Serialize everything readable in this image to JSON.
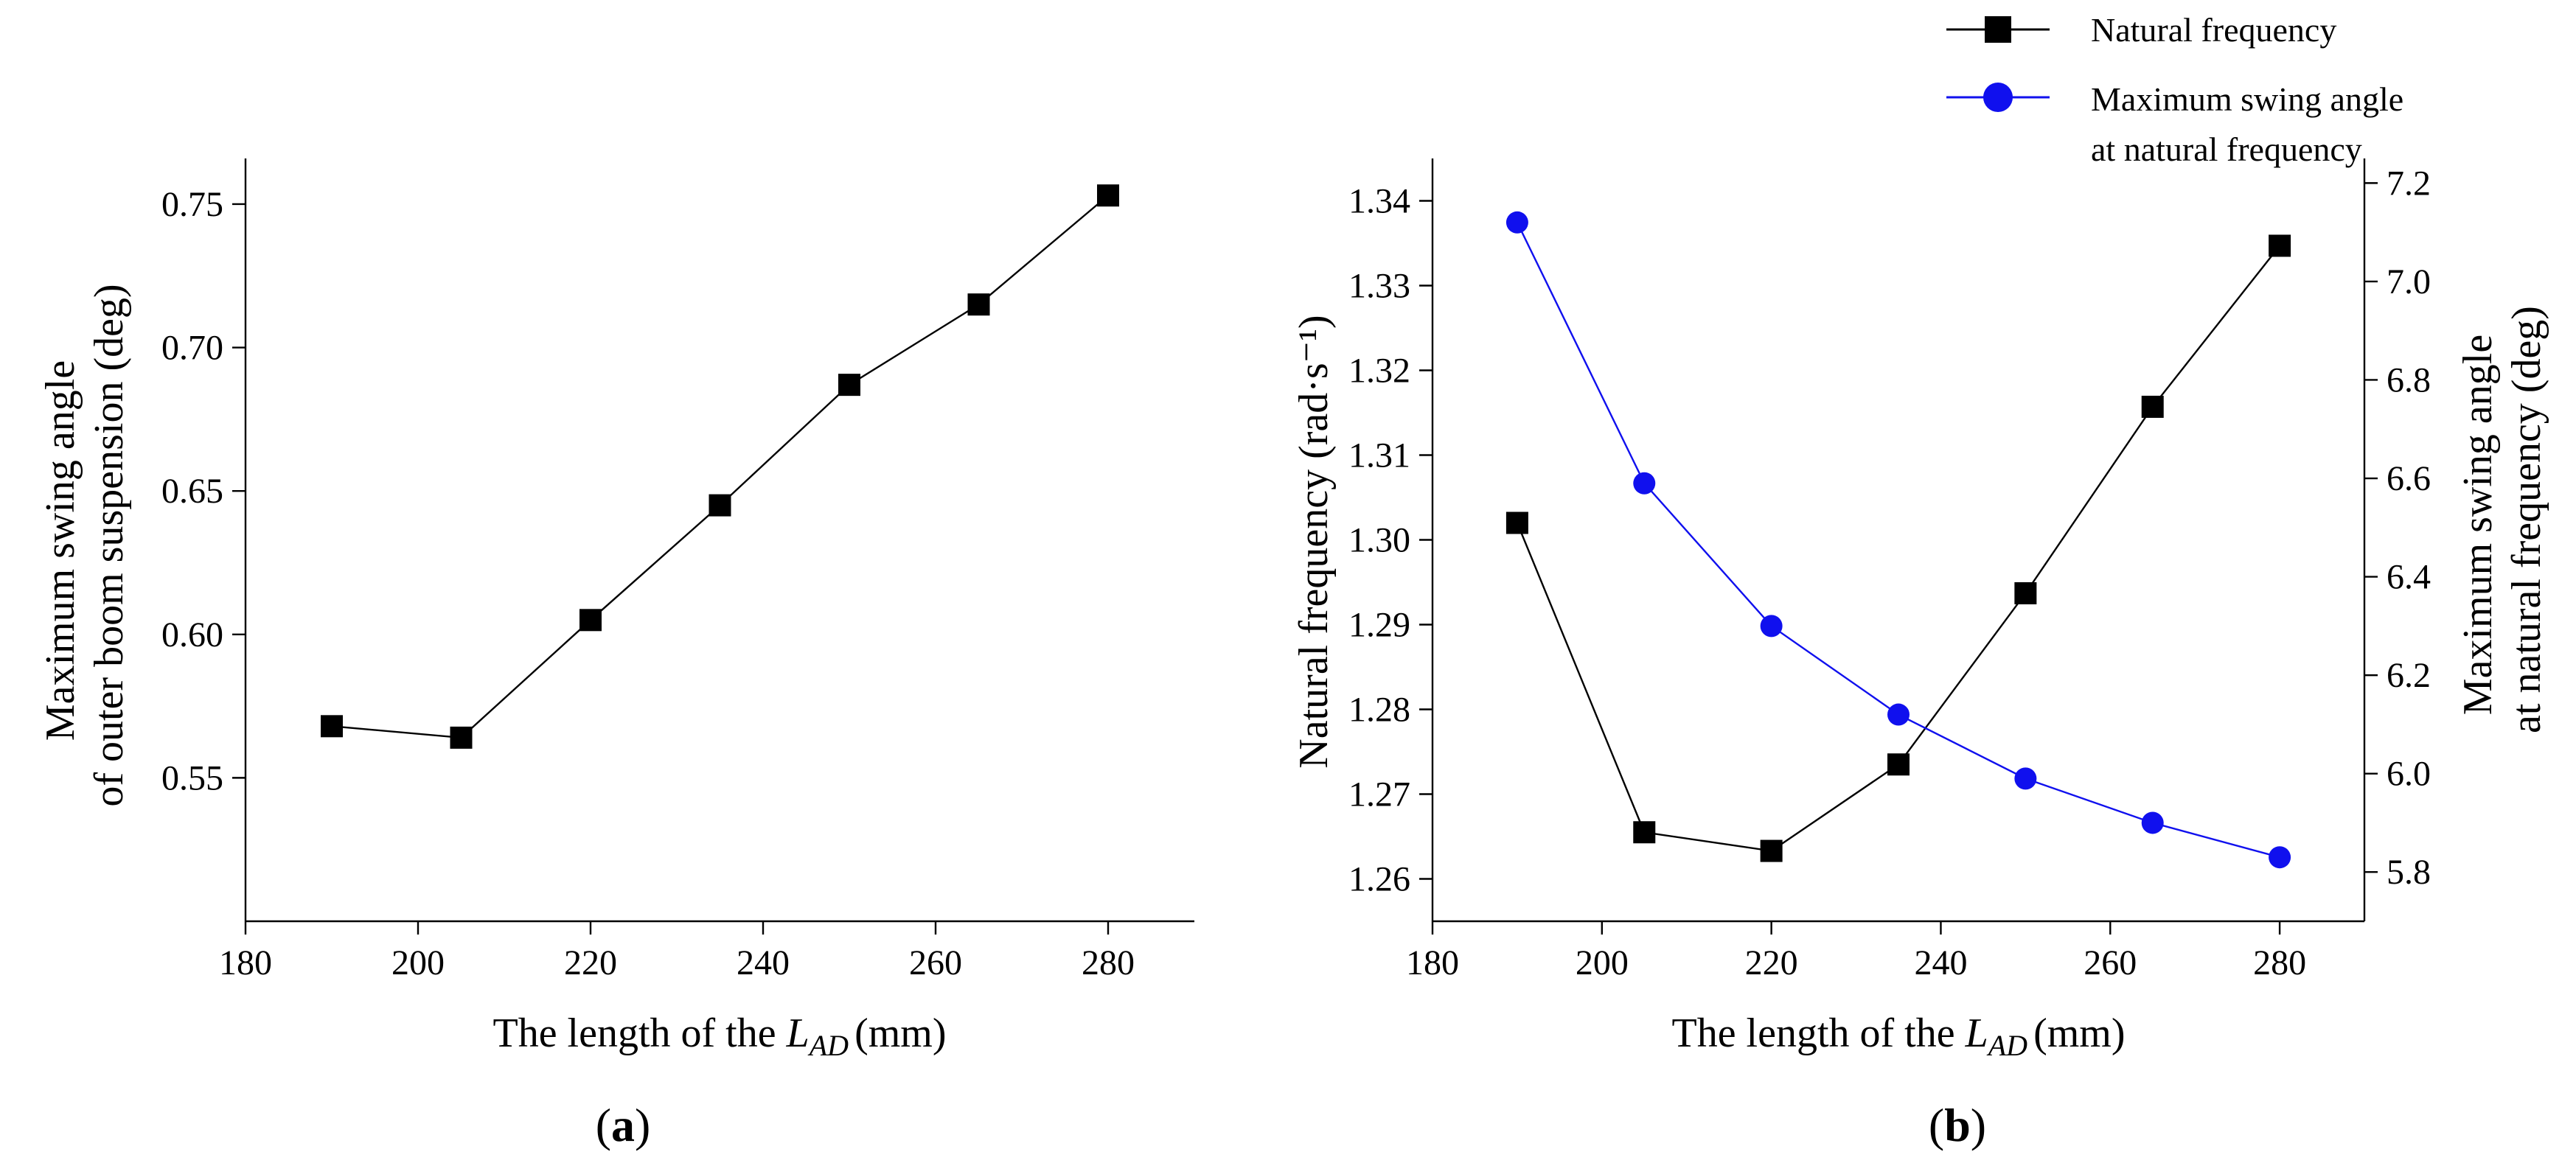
{
  "chart_data": [
    {
      "panel": "(a)",
      "panel_letter": "a",
      "type": "line",
      "title": "",
      "xlabel": "The length of the",
      "xlabel_var": "L",
      "xlabel_sub": "AD",
      "xlabel_unit": "(mm)",
      "ylabel_lines": [
        "Maximum swing angle",
        "of outer boom suspension (deg)"
      ],
      "xlim": [
        180,
        290
      ],
      "ylim": [
        0.5,
        0.76
      ],
      "xticks": [
        180,
        200,
        220,
        240,
        260,
        280
      ],
      "xtick_labels": [
        "180",
        "200",
        "220",
        "240",
        "260",
        "280"
      ],
      "yticks": [
        0.55,
        0.6,
        0.65,
        0.7,
        0.75
      ],
      "ytick_labels": [
        "0.55",
        "0.60",
        "0.65",
        "0.70",
        "0.75"
      ],
      "series": [
        {
          "name": "Maximum swing angle of outer boom suspension",
          "color": "#000000",
          "marker": "square",
          "x": [
            190,
            205,
            220,
            235,
            250,
            265,
            280
          ],
          "y": [
            0.568,
            0.564,
            0.605,
            0.645,
            0.687,
            0.715,
            0.753
          ]
        }
      ]
    },
    {
      "panel": "(b)",
      "panel_letter": "b",
      "type": "line",
      "title": "",
      "xlabel": "The length of the",
      "xlabel_var": "L",
      "xlabel_sub": "AD",
      "xlabel_unit": "(mm)",
      "ylabel_left": "Natural frequency (rad·s⁻¹)",
      "ylabel_right_lines": [
        "Maximum swing angle",
        "at natural frequency (deg)"
      ],
      "xlim": [
        180,
        290
      ],
      "ylim_left": [
        1.255,
        1.345
      ],
      "ylim_right": [
        5.7,
        7.25
      ],
      "xticks": [
        180,
        200,
        220,
        240,
        260,
        280
      ],
      "xtick_labels": [
        "180",
        "200",
        "220",
        "240",
        "260",
        "280"
      ],
      "yticks_left": [
        1.26,
        1.27,
        1.28,
        1.29,
        1.3,
        1.31,
        1.32,
        1.33,
        1.34
      ],
      "ytick_labels_left": [
        "1.26",
        "1.27",
        "1.28",
        "1.29",
        "1.30",
        "1.31",
        "1.32",
        "1.33",
        "1.34"
      ],
      "yticks_right": [
        5.8,
        6.0,
        6.2,
        6.4,
        6.6,
        6.8,
        7.0,
        7.2
      ],
      "ytick_labels_right": [
        "5.8",
        "6.0",
        "6.2",
        "6.4",
        "6.6",
        "6.8",
        "7.0",
        "7.2"
      ],
      "legend_position": "top-right",
      "series": [
        {
          "name": "Natural frequency",
          "axis": "left",
          "color": "#000000",
          "marker": "square",
          "x": [
            190,
            205,
            220,
            235,
            250,
            265,
            280
          ],
          "y": [
            1.302,
            1.2655,
            1.2633,
            1.2735,
            1.2937,
            1.3157,
            1.3347
          ]
        },
        {
          "name": "Maximum swing angle at natural frequency",
          "legend_lines": [
            "Maximum swing angle",
            "at natural frequency"
          ],
          "axis": "right",
          "color": "#1010ee",
          "marker": "circle",
          "x": [
            190,
            205,
            220,
            235,
            250,
            265,
            280
          ],
          "y": [
            7.12,
            6.59,
            6.3,
            6.12,
            5.99,
            5.9,
            5.83
          ]
        }
      ]
    }
  ]
}
